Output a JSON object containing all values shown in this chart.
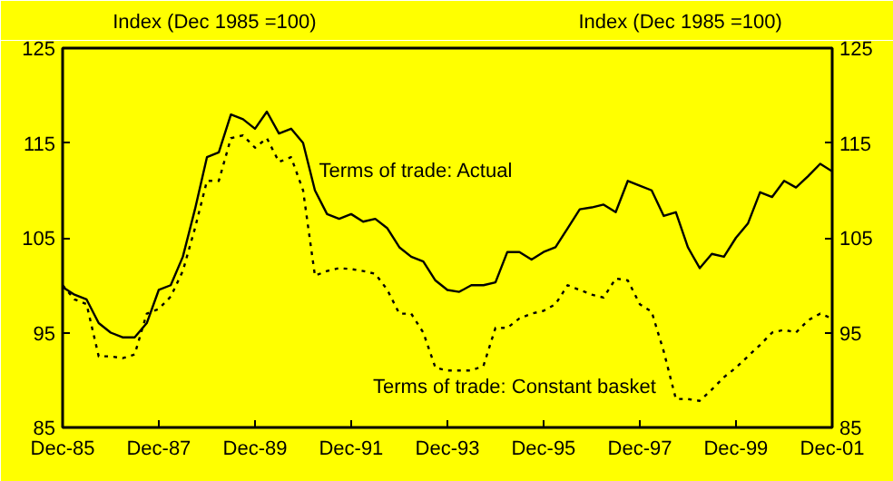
{
  "chart_data": {
    "type": "line",
    "ylabel": "Index (Dec 1985 =100)",
    "y2label": "Index (Dec 1985 =100)",
    "x": [
      "1985-12",
      "1986-03",
      "1986-06",
      "1986-09",
      "1986-12",
      "1987-03",
      "1987-06",
      "1987-09",
      "1987-12",
      "1988-03",
      "1988-06",
      "1988-09",
      "1988-12",
      "1989-03",
      "1989-06",
      "1989-09",
      "1989-12",
      "1990-03",
      "1990-06",
      "1990-09",
      "1990-12",
      "1991-03",
      "1991-06",
      "1991-09",
      "1991-12",
      "1992-03",
      "1992-06",
      "1992-09",
      "1992-12",
      "1993-03",
      "1993-06",
      "1993-09",
      "1993-12",
      "1994-03",
      "1994-06",
      "1994-09",
      "1994-12",
      "1995-03",
      "1995-06",
      "1995-09",
      "1995-12",
      "1996-03",
      "1996-06",
      "1996-09",
      "1996-12",
      "1997-03",
      "1997-06",
      "1997-09",
      "1997-12",
      "1998-03",
      "1998-06",
      "1998-09",
      "1998-12",
      "1999-03",
      "1999-06",
      "1999-09",
      "1999-12",
      "2000-03",
      "2000-06",
      "2000-09",
      "2000-12",
      "2001-03",
      "2001-06",
      "2001-09",
      "2001-12"
    ],
    "series": [
      {
        "color": "#000000",
        "line_style": "solid",
        "values": [
          99.8,
          99,
          98.5,
          96,
          95,
          94.5,
          94.5,
          96,
          99.5,
          100,
          103,
          108,
          113.5,
          114,
          118,
          117.5,
          116.5,
          118.3,
          116,
          116.5,
          115,
          110,
          107.5,
          107,
          107.5,
          106.7,
          107,
          106,
          104,
          103,
          102.5,
          100.5,
          99.5,
          99.3,
          100,
          100,
          100.3,
          103.5,
          103.5,
          102.7,
          103.5,
          104,
          106,
          108,
          108.2,
          108.5,
          107.7,
          111,
          110.5,
          110,
          107.3,
          107.7,
          104,
          101.8,
          103.3,
          103,
          105,
          106.5,
          109.8,
          109.3,
          111,
          110.3,
          111.5,
          112.8,
          112
        ]
      },
      {
        "color": "#000000",
        "line_style": "dotted",
        "values": [
          100,
          98.5,
          98,
          92.5,
          92.5,
          92.3,
          92.7,
          97,
          97.5,
          98.8,
          101.5,
          106,
          111,
          111,
          115.5,
          115.8,
          114.5,
          115.5,
          113,
          113.5,
          110,
          101,
          101.5,
          101.8,
          101.7,
          101.5,
          101.2,
          99.5,
          97,
          97,
          95,
          91.3,
          91,
          91,
          91,
          91.5,
          95.5,
          95.5,
          96.5,
          97,
          97.3,
          98,
          100,
          99.5,
          99,
          98.7,
          100.7,
          100.5,
          98,
          97.2,
          93,
          88,
          88,
          87.8,
          89,
          90.3,
          91.3,
          92.5,
          93.7,
          95,
          95.3,
          95,
          96.3,
          97,
          96.5
        ]
      }
    ],
    "annotations": [
      {
        "text": "Terms of trade: Actual",
        "x": "1991-04",
        "y": 112
      },
      "Terms of trade: Constant basket"
    ],
    "xlim": [
      "1985-12",
      "2001-12"
    ],
    "xticks": [
      {
        "value": "1985-12",
        "label": "Dec-85"
      },
      {
        "value": "1987-12",
        "label": "Dec-87"
      },
      {
        "value": "1989-12",
        "label": "Dec-89"
      },
      {
        "value": "1991-12",
        "label": "Dec-91"
      },
      {
        "value": "1993-12",
        "label": "Dec-93"
      },
      {
        "value": "1995-12",
        "label": "Dec-95"
      },
      {
        "value": "1997-12",
        "label": "Dec-97"
      },
      {
        "value": "1999-12",
        "label": "Dec-99"
      },
      {
        "value": "2001-12",
        "label": "Dec-01"
      }
    ],
    "ylim": [
      85,
      125
    ],
    "yticks": [
      85,
      95,
      105,
      115,
      125
    ],
    "y2lim": [
      85,
      125
    ],
    "y2ticks": [
      85,
      95,
      105,
      115,
      125
    ],
    "grid": false,
    "marker": "none"
  }
}
